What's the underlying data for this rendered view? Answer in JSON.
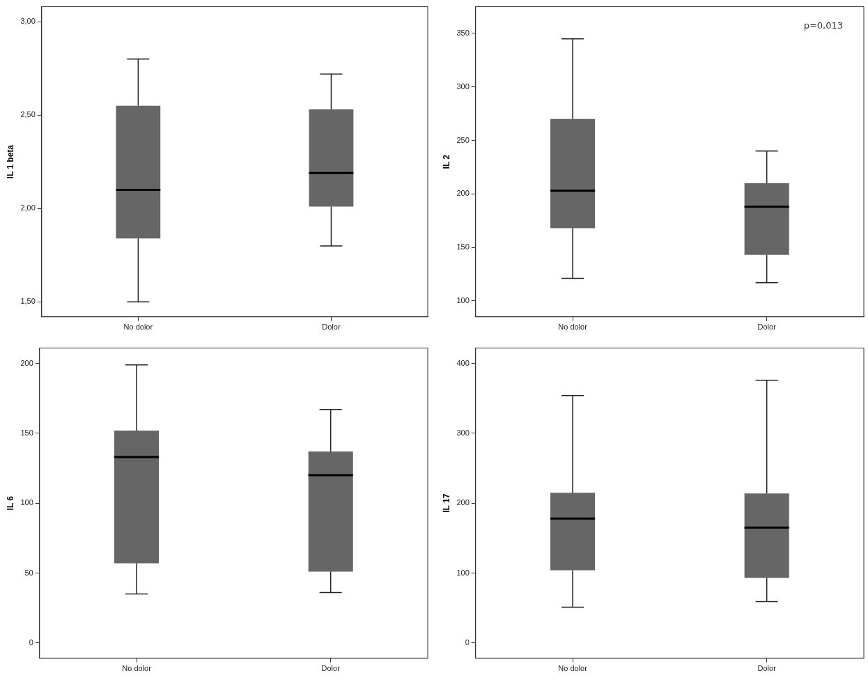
{
  "chart_data": [
    {
      "type": "box",
      "ylabel": "IL 1 beta",
      "categories": [
        "No dolor",
        "Dolor"
      ],
      "color": "#666666",
      "grid": false,
      "boxes": [
        {
          "low": 1.5,
          "q1": 1.84,
          "median": 2.1,
          "q3": 2.55,
          "high": 2.8
        },
        {
          "low": 1.8,
          "q1": 2.01,
          "median": 2.19,
          "q3": 2.53,
          "high": 2.72
        }
      ],
      "ylim": [
        1.42,
        3.08
      ],
      "yticks": [
        {
          "value": 1.5,
          "label": "1,50"
        },
        {
          "value": 2,
          "label": "2,00"
        },
        {
          "value": 2.5,
          "label": "2,50"
        },
        {
          "value": 3,
          "label": "3,00"
        }
      ]
    },
    {
      "type": "box",
      "ylabel": "IL 2",
      "categories": [
        "No dolor",
        "Dolor"
      ],
      "color": "#666666",
      "grid": false,
      "annotations": [
        "p=0,013"
      ],
      "boxes": [
        {
          "low": 121,
          "q1": 168,
          "median": 203,
          "q3": 270,
          "high": 345
        },
        {
          "low": 117,
          "q1": 143,
          "median": 188,
          "q3": 210,
          "high": 240
        }
      ],
      "ylim": [
        85,
        375
      ],
      "yticks": [
        100,
        150,
        200,
        250,
        300,
        350
      ]
    },
    {
      "type": "box",
      "ylabel": "IL 6",
      "categories": [
        "No dolor",
        "Dolor"
      ],
      "color": "#666666",
      "grid": false,
      "boxes": [
        {
          "low": 35,
          "q1": 57,
          "median": 133,
          "q3": 152,
          "high": 199
        },
        {
          "low": 36,
          "q1": 51,
          "median": 120,
          "q3": 137,
          "high": 167
        }
      ],
      "ylim": [
        -11,
        211
      ],
      "yticks": [
        0,
        50,
        100,
        150,
        200
      ]
    },
    {
      "type": "box",
      "ylabel": "IL 17",
      "categories": [
        "No dolor",
        "Dolor"
      ],
      "color": "#666666",
      "grid": false,
      "boxes": [
        {
          "low": 51,
          "q1": 104,
          "median": 178,
          "q3": 215,
          "high": 354
        },
        {
          "low": 59,
          "q1": 93,
          "median": 165,
          "q3": 214,
          "high": 376
        }
      ],
      "ylim": [
        -22,
        422
      ],
      "yticks": [
        0,
        100,
        200,
        300,
        400
      ]
    }
  ]
}
